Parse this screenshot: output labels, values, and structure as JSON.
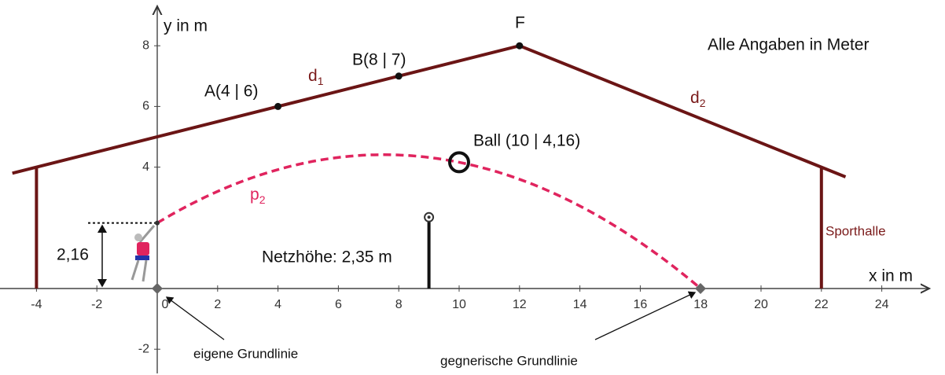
{
  "axes": {
    "x_label": "x in m",
    "y_label": "y in m",
    "x_ticks": [
      "-4",
      "-2",
      "0",
      "2",
      "4",
      "6",
      "8",
      "10",
      "12",
      "14",
      "16",
      "18",
      "20",
      "22",
      "24"
    ],
    "y_ticks": [
      "-2",
      "4",
      "6",
      "8"
    ]
  },
  "points": {
    "F": "F",
    "A": "A(4 | 6)",
    "B": "B(8 | 7)",
    "ball": "Ball (10 | 4,16)"
  },
  "lines": {
    "d1": {
      "name": "d",
      "sub": "1"
    },
    "d2": {
      "name": "d",
      "sub": "2"
    },
    "p2": {
      "name": "p",
      "sub": "2"
    }
  },
  "labels": {
    "net": "Netzhöhe: 2,35 m",
    "height": "2,16",
    "hall": "Sporthalle",
    "note": "Alle Angaben in Meter",
    "own_line": "eigene Grundlinie",
    "opp_line": "gegnerische Grundlinie"
  }
}
